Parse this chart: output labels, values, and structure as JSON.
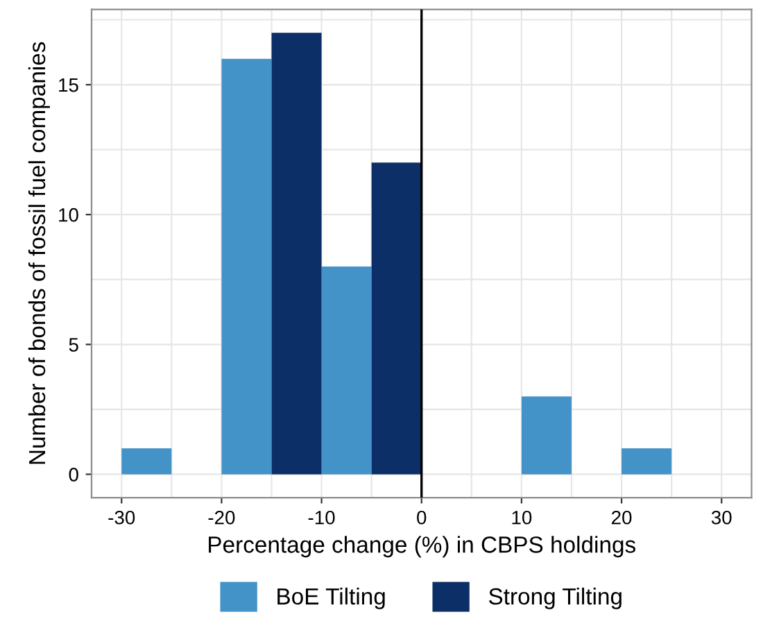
{
  "chart_data": {
    "type": "histogram",
    "xlabel": "Percentage change (%) in CBPS holdings",
    "ylabel": "Number of bonds of fossil fuel companies",
    "bins": [
      -30,
      -25,
      -20,
      -15,
      -10,
      -5,
      0,
      5,
      10,
      15,
      20,
      25
    ],
    "series": [
      {
        "name": "BoE Tilting",
        "color": "#4393c8",
        "values": [
          1,
          0,
          16,
          0,
          8,
          0,
          0,
          0,
          3,
          0,
          1
        ]
      },
      {
        "name": "Strong Tilting",
        "color": "#0b2f66",
        "values": [
          0,
          0,
          0,
          17,
          0,
          12,
          0,
          0,
          0,
          0,
          0
        ]
      }
    ],
    "xlim": [
      -33,
      33
    ],
    "xticks": [
      -30,
      -20,
      -10,
      0,
      10,
      20,
      30
    ],
    "ylim": [
      -0.9,
      17.9
    ],
    "yticks": [
      0,
      5,
      10,
      15
    ],
    "ref_lines": [
      {
        "axis": "x",
        "value": 0,
        "color": "#000000"
      }
    ],
    "grid": true,
    "legend": "bottom"
  }
}
